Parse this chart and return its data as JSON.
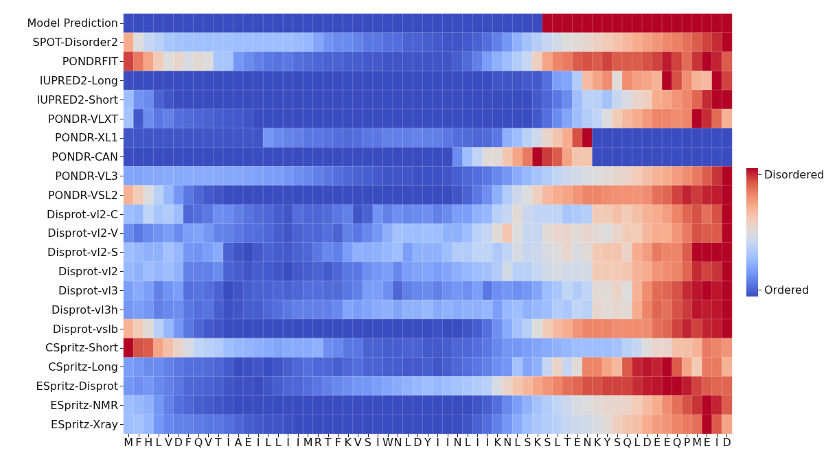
{
  "chart_data": [
    {
      "type": "heatmap",
      "categories": [
        "M",
        "F",
        "H",
        "L",
        "V",
        "D",
        "F",
        "Q",
        "V",
        "T",
        "I",
        "A",
        "E",
        "I",
        "L",
        "L",
        "I",
        "I",
        "M",
        "R",
        "T",
        "F",
        "K",
        "V",
        "S",
        "I",
        "W",
        "N",
        "L",
        "D",
        "Y",
        "I",
        "I",
        "N",
        "L",
        "I",
        "I",
        "K",
        "N",
        "L",
        "S",
        "K",
        "S",
        "L",
        "T",
        "E",
        "N",
        "K",
        "Y",
        "S",
        "Q",
        "L",
        "D",
        "E",
        "E",
        "Q",
        "P",
        "M",
        "E",
        "I",
        "D"
      ],
      "y_categories": [
        "Model Prediction",
        "SPOT-Disorder2",
        "PONDRFIT",
        "IUPRED2-Long",
        "IUPRED2-Short",
        "PONDR-VLXT",
        "PONDR-XL1",
        "PONDR-CAN",
        "PONDR-VL3",
        "PONDR-VSL2",
        "Disprot-vl2-C",
        "Disprot-vl2-V",
        "Disprot-vl2-S",
        "Disprot-vl2",
        "Disprot-vl3",
        "Disprot-vl3h",
        "Disprot-vslb",
        "CSpritz-Short",
        "CSpritz-Long",
        "ESpritz-Disprot",
        "ESpritz-NMR",
        "ESpritz-Xray"
      ],
      "clim": [
        0,
        1
      ],
      "cticks": [
        {
          "value": 0.05,
          "label": "Ordered"
        },
        {
          "value": 0.95,
          "label": "Disordered"
        }
      ],
      "cells": [
        [
          0,
          0,
          0,
          0,
          0,
          0,
          0,
          0,
          0,
          0,
          0,
          0,
          0,
          0,
          0,
          0,
          0,
          0,
          0,
          0,
          0,
          0,
          0,
          0,
          0,
          0,
          0,
          0,
          0,
          0,
          0,
          0,
          0,
          0,
          0,
          0,
          0,
          0,
          0,
          0,
          0,
          0,
          1,
          1,
          1,
          1,
          1,
          1,
          1,
          1,
          1,
          1,
          1,
          1,
          1,
          1,
          1,
          1,
          1,
          1,
          1
        ],
        [
          0.7,
          0.5,
          0.42,
          0.38,
          0.33,
          0.32,
          0.31,
          0.31,
          0.31,
          0.31,
          0.31,
          0.3,
          0.3,
          0.3,
          0.3,
          0.3,
          0.3,
          0.29,
          0.28,
          0.22,
          0.17,
          0.15,
          0.15,
          0.13,
          0.1,
          0.1,
          0.08,
          0.08,
          0.05,
          0.05,
          0.04,
          0.03,
          0.02,
          0.02,
          0.03,
          0.05,
          0.08,
          0.12,
          0.18,
          0.26,
          0.32,
          0.37,
          0.42,
          0.46,
          0.5,
          0.52,
          0.54,
          0.57,
          0.6,
          0.63,
          0.66,
          0.7,
          0.73,
          0.76,
          0.79,
          0.81,
          0.84,
          0.88,
          0.92,
          0.95,
          1.0
        ],
        [
          0.92,
          0.82,
          0.72,
          0.6,
          0.5,
          0.55,
          0.48,
          0.53,
          0.5,
          0.33,
          0.33,
          0.18,
          0.15,
          0.12,
          0.1,
          0.09,
          0.1,
          0.08,
          0.07,
          0.06,
          0.05,
          0.05,
          0.04,
          0.04,
          0.03,
          0.03,
          0.02,
          0.02,
          0.02,
          0.02,
          0.02,
          0.02,
          0.02,
          0.04,
          0.07,
          0.12,
          0.2,
          0.25,
          0.3,
          0.36,
          0.42,
          0.58,
          0.72,
          0.8,
          0.82,
          0.88,
          0.9,
          0.88,
          0.92,
          0.88,
          0.88,
          0.88,
          0.9,
          0.92,
          0.97,
          0.92,
          0.85,
          0.94,
          1.0,
          0.96,
          0.88
        ],
        [
          0,
          0,
          0,
          0,
          0,
          0,
          0,
          0,
          0,
          0,
          0,
          0,
          0,
          0,
          0,
          0,
          0,
          0,
          0,
          0,
          0,
          0,
          0,
          0,
          0,
          0,
          0,
          0,
          0,
          0,
          0,
          0,
          0,
          0,
          0,
          0,
          0,
          0.02,
          0.02,
          0.02,
          0.03,
          0.03,
          0.08,
          0.2,
          0.22,
          0.36,
          0.65,
          0.72,
          0.78,
          0.52,
          0.78,
          0.74,
          0.72,
          0.68,
          1.0,
          0.9,
          0.78,
          0.68,
          0.66,
          1.0,
          0.92
        ],
        [
          0.3,
          0.17,
          0.15,
          0.05,
          0.02,
          0,
          0,
          0,
          0,
          0,
          0,
          0,
          0,
          0,
          0,
          0,
          0,
          0,
          0,
          0,
          0,
          0,
          0,
          0,
          0,
          0,
          0,
          0,
          0,
          0,
          0,
          0,
          0,
          0,
          0,
          0,
          0,
          0,
          0,
          0,
          0,
          0.03,
          0.06,
          0.1,
          0.15,
          0.3,
          0.38,
          0.38,
          0.32,
          0.42,
          0.48,
          0.55,
          0.58,
          0.7,
          0.72,
          0.76,
          0.8,
          0.86,
          0.95,
          1.0,
          1.0
        ],
        [
          0.32,
          0.03,
          0.15,
          0.1,
          0.12,
          0.08,
          0.07,
          0.06,
          0.05,
          0.04,
          0.03,
          0.03,
          0.02,
          0,
          0,
          0,
          0,
          0,
          0,
          0,
          0,
          0,
          0,
          0,
          0,
          0,
          0,
          0,
          0,
          0,
          0,
          0,
          0,
          0,
          0,
          0,
          0,
          0,
          0,
          0,
          0,
          0.03,
          0.08,
          0.15,
          0.22,
          0.3,
          0.36,
          0.4,
          0.5,
          0.6,
          0.66,
          0.7,
          0.75,
          0.8,
          0.8,
          0.78,
          0.8,
          1.0,
          0.95,
          0.85,
          0.68
        ],
        [
          0.02,
          0.02,
          0.02,
          0.02,
          0.02,
          0.02,
          0.02,
          0.02,
          0.02,
          0.02,
          0.02,
          0.02,
          0.02,
          0.02,
          0.18,
          0.15,
          0.13,
          0.12,
          0.1,
          0.1,
          0.09,
          0.08,
          0.07,
          0.08,
          0.1,
          0.1,
          0.12,
          0.12,
          0.12,
          0.13,
          0.12,
          0.12,
          0.1,
          0.08,
          0.07,
          0.06,
          0.07,
          0.1,
          0.25,
          0.3,
          0.38,
          0.45,
          0.55,
          0.62,
          0.7,
          0.9,
          1.0,
          0,
          0,
          0,
          0,
          0,
          0,
          0,
          0,
          0,
          0,
          0,
          0,
          0,
          0
        ],
        [
          0,
          0,
          0,
          0,
          0,
          0,
          0,
          0,
          0,
          0,
          0,
          0,
          0,
          0,
          0,
          0,
          0,
          0,
          0,
          0,
          0,
          0,
          0,
          0,
          0,
          0,
          0,
          0,
          0,
          0,
          0,
          0,
          0,
          0.15,
          0.3,
          0.4,
          0.52,
          0.52,
          0.62,
          0.72,
          0.82,
          1.0,
          0.93,
          0.88,
          0.72,
          0.62,
          0.62,
          0,
          0,
          0,
          0,
          0,
          0,
          0,
          0,
          0,
          0,
          0,
          0,
          0,
          0
        ],
        [
          0.22,
          0.22,
          0.23,
          0.23,
          0.24,
          0.24,
          0.24,
          0.24,
          0.24,
          0.24,
          0.23,
          0.23,
          0.22,
          0.21,
          0.2,
          0.2,
          0.18,
          0.16,
          0.14,
          0.12,
          0.1,
          0.08,
          0.06,
          0.05,
          0.04,
          0.03,
          0.02,
          0.02,
          0.02,
          0.01,
          0.01,
          0.01,
          0.02,
          0.04,
          0.06,
          0.08,
          0.1,
          0.14,
          0.18,
          0.24,
          0.28,
          0.32,
          0.36,
          0.4,
          0.44,
          0.46,
          0.48,
          0.5,
          0.52,
          0.54,
          0.56,
          0.6,
          0.64,
          0.68,
          0.7,
          0.74,
          0.78,
          0.82,
          0.88,
          0.94,
          1.0
        ],
        [
          0.68,
          0.6,
          0.5,
          0.38,
          0.28,
          0.18,
          0.1,
          0.06,
          0.03,
          0.02,
          0,
          0,
          0,
          0,
          0,
          0,
          0,
          0,
          0,
          0,
          0,
          0,
          0,
          0,
          0,
          0,
          0,
          0,
          0,
          0,
          0,
          0,
          0,
          0.02,
          0.05,
          0.1,
          0.16,
          0.25,
          0.36,
          0.44,
          0.5,
          0.58,
          0.66,
          0.7,
          0.72,
          0.76,
          0.8,
          0.8,
          0.78,
          0.77,
          0.77,
          0.76,
          0.78,
          0.84,
          0.86,
          0.92,
          0.96,
          0.93,
          0.96,
          0.97,
          1.0
        ],
        [
          0.3,
          0.28,
          0.4,
          0.33,
          0.36,
          0.3,
          0.06,
          0.08,
          0.1,
          0.16,
          0.15,
          0.12,
          0.09,
          0.07,
          0.06,
          0.04,
          0.02,
          0.08,
          0.06,
          0.06,
          0.07,
          0.1,
          0.12,
          0.02,
          0.05,
          0.17,
          0.12,
          0.16,
          0.14,
          0.15,
          0.16,
          0.12,
          0.15,
          0.2,
          0.2,
          0.26,
          0.28,
          0.38,
          0.42,
          0.52,
          0.43,
          0.4,
          0.4,
          0.4,
          0.33,
          0.35,
          0.37,
          0.6,
          0.6,
          0.64,
          0.6,
          0.64,
          0.68,
          0.7,
          0.74,
          0.8,
          0.86,
          0.9,
          0.84,
          0.9,
          1.0
        ],
        [
          0.15,
          0.1,
          0.14,
          0.17,
          0.2,
          0.15,
          0.2,
          0.22,
          0.18,
          0.13,
          0.12,
          0.1,
          0.08,
          0.08,
          0.06,
          0.04,
          0.02,
          0.05,
          0.06,
          0.06,
          0.08,
          0.05,
          0.12,
          0.1,
          0.14,
          0.18,
          0.25,
          0.32,
          0.3,
          0.3,
          0.31,
          0.3,
          0.26,
          0.26,
          0.3,
          0.38,
          0.42,
          0.52,
          0.62,
          0.5,
          0.42,
          0.42,
          0.52,
          0.55,
          0.55,
          0.52,
          0.55,
          0.52,
          0.5,
          0.55,
          0.6,
          0.6,
          0.66,
          0.7,
          0.7,
          0.76,
          0.82,
          0.9,
          0.88,
          0.88,
          1.0
        ],
        [
          0.3,
          0.28,
          0.26,
          0.26,
          0.32,
          0.28,
          0.18,
          0.17,
          0.2,
          0.24,
          0.05,
          0.02,
          0,
          0.03,
          0.05,
          0.04,
          0.03,
          0.05,
          0.06,
          0.1,
          0.14,
          0.12,
          0.2,
          0.26,
          0.25,
          0.26,
          0.28,
          0.3,
          0.2,
          0.26,
          0.26,
          0.26,
          0.3,
          0.36,
          0.36,
          0.4,
          0.4,
          0.35,
          0.4,
          0.48,
          0.42,
          0.44,
          0.48,
          0.5,
          0.55,
          0.48,
          0.52,
          0.6,
          0.62,
          0.62,
          0.56,
          0.7,
          0.74,
          0.82,
          0.8,
          0.8,
          0.88,
          1.0,
          1.0,
          1.0,
          1.0
        ],
        [
          0.28,
          0.26,
          0.3,
          0.28,
          0.3,
          0.26,
          0.12,
          0.12,
          0.12,
          0.15,
          0.05,
          0.04,
          0.02,
          0.04,
          0.03,
          0.02,
          0,
          0.03,
          0.04,
          0.05,
          0.03,
          0.06,
          0.1,
          0.1,
          0.16,
          0.18,
          0.2,
          0.14,
          0.2,
          0.22,
          0.22,
          0.2,
          0.22,
          0.25,
          0.28,
          0.3,
          0.32,
          0.36,
          0.46,
          0.38,
          0.38,
          0.42,
          0.46,
          0.48,
          0.46,
          0.46,
          0.47,
          0.6,
          0.6,
          0.6,
          0.62,
          0.68,
          0.7,
          0.76,
          0.78,
          0.8,
          0.86,
          0.95,
          0.92,
          0.94,
          1.0
        ],
        [
          0.2,
          0.24,
          0.2,
          0.12,
          0.17,
          0.2,
          0.08,
          0.09,
          0.08,
          0.05,
          0,
          0.02,
          0.04,
          0.05,
          0.05,
          0.06,
          0.05,
          0.06,
          0.08,
          0.08,
          0.07,
          0.07,
          0.1,
          0.12,
          0.2,
          0.2,
          0.16,
          0.06,
          0.12,
          0.14,
          0.15,
          0.12,
          0.16,
          0.18,
          0.16,
          0.2,
          0.1,
          0.16,
          0.18,
          0.16,
          0.18,
          0.22,
          0.3,
          0.33,
          0.4,
          0.36,
          0.4,
          0.52,
          0.52,
          0.56,
          0.5,
          0.68,
          0.78,
          0.85,
          0.86,
          0.9,
          0.95,
          0.98,
          1.0,
          0.98,
          1.0
        ],
        [
          0.18,
          0.2,
          0.18,
          0.12,
          0.14,
          0.16,
          0.1,
          0.08,
          0.09,
          0.04,
          0.01,
          0.02,
          0.04,
          0.04,
          0.06,
          0.08,
          0.1,
          0.12,
          0.12,
          0.12,
          0.12,
          0.14,
          0.22,
          0.2,
          0.22,
          0.24,
          0.25,
          0.22,
          0.26,
          0.26,
          0.28,
          0.24,
          0.26,
          0.24,
          0.26,
          0.26,
          0.28,
          0.2,
          0.28,
          0.3,
          0.26,
          0.28,
          0.3,
          0.36,
          0.34,
          0.4,
          0.38,
          0.54,
          0.52,
          0.54,
          0.52,
          0.7,
          0.8,
          0.86,
          0.84,
          0.9,
          0.93,
          0.98,
          0.97,
          0.98,
          1.0
        ],
        [
          0.68,
          0.6,
          0.52,
          0.38,
          0.28,
          0.18,
          0.1,
          0.06,
          0.03,
          0.02,
          0,
          0,
          0,
          0,
          0,
          0,
          0,
          0,
          0,
          0,
          0,
          0,
          0,
          0,
          0,
          0,
          0,
          0,
          0,
          0,
          0,
          0.01,
          0,
          0,
          0.02,
          0.04,
          0.08,
          0.16,
          0.24,
          0.32,
          0.38,
          0.5,
          0.6,
          0.66,
          0.7,
          0.76,
          0.8,
          0.8,
          0.8,
          0.78,
          0.78,
          0.78,
          0.78,
          0.84,
          0.86,
          0.92,
          0.96,
          0.92,
          0.96,
          0.97,
          1.0
        ],
        [
          1.0,
          0.9,
          0.88,
          0.72,
          0.64,
          0.56,
          0.48,
          0.4,
          0.38,
          0.36,
          0.3,
          0.28,
          0.27,
          0.25,
          0.24,
          0.22,
          0.24,
          0.24,
          0.24,
          0.26,
          0.16,
          0.14,
          0.1,
          0.1,
          0.05,
          0.05,
          0.04,
          0.04,
          0.05,
          0.05,
          0.03,
          0.03,
          0.04,
          0.06,
          0.06,
          0.08,
          0.1,
          0.14,
          0.18,
          0.18,
          0.2,
          0.22,
          0.24,
          0.26,
          0.28,
          0.3,
          0.3,
          0.3,
          0.3,
          0.32,
          0.38,
          0.42,
          0.5,
          0.55,
          0.55,
          0.64,
          0.64,
          0.68,
          0.82,
          0.8,
          0.76
        ],
        [
          0.2,
          0.18,
          0.15,
          0.15,
          0.12,
          0.1,
          0.08,
          0.08,
          0.07,
          0.06,
          0.03,
          0,
          0.01,
          0.02,
          0,
          0.02,
          0.04,
          0.06,
          0.08,
          0.06,
          0.06,
          0.04,
          0.06,
          0.08,
          0.05,
          0.05,
          0.04,
          0.04,
          0.03,
          0.03,
          0.04,
          0.02,
          0.04,
          0.06,
          0.08,
          0.1,
          0.12,
          0.16,
          0.18,
          0.32,
          0.22,
          0.26,
          0.42,
          0.56,
          0.42,
          0.52,
          0.8,
          0.8,
          0.72,
          0.66,
          0.88,
          0.96,
          0.98,
          0.96,
          1.0,
          0.88,
          0.72,
          0.6,
          0.82,
          0.82,
          0.68
        ],
        [
          0.18,
          0.16,
          0.18,
          0.14,
          0.12,
          0.1,
          0.06,
          0.06,
          0.05,
          0.04,
          0.02,
          0.01,
          0.01,
          0,
          0.02,
          0.04,
          0.06,
          0.06,
          0.08,
          0.1,
          0.12,
          0.14,
          0.16,
          0.18,
          0.18,
          0.2,
          0.22,
          0.24,
          0.26,
          0.28,
          0.3,
          0.28,
          0.3,
          0.32,
          0.34,
          0.36,
          0.38,
          0.48,
          0.56,
          0.62,
          0.66,
          0.72,
          0.76,
          0.8,
          0.84,
          0.86,
          0.9,
          0.9,
          0.92,
          0.92,
          0.92,
          0.95,
          0.97,
          0.98,
          1.0,
          1.0,
          0.97,
          0.92,
          0.88,
          0.86,
          0.86
        ],
        [
          0.3,
          0.28,
          0.26,
          0.18,
          0.12,
          0.08,
          0.06,
          0.04,
          0.03,
          0.02,
          0.01,
          0,
          0,
          0,
          0,
          0,
          0,
          0,
          0,
          0,
          0,
          0,
          0,
          0,
          0,
          0,
          0,
          0,
          0,
          0,
          0,
          0,
          0,
          0,
          0,
          0.02,
          0.04,
          0.08,
          0.14,
          0.2,
          0.26,
          0.32,
          0.36,
          0.4,
          0.44,
          0.48,
          0.5,
          0.52,
          0.54,
          0.55,
          0.56,
          0.6,
          0.65,
          0.7,
          0.78,
          0.84,
          0.9,
          0.94,
          1.0,
          0.96,
          0.88
        ],
        [
          0.3,
          0.32,
          0.28,
          0.18,
          0.14,
          0.12,
          0.12,
          0.11,
          0.1,
          0.1,
          0.08,
          0.06,
          0.04,
          0.03,
          0.02,
          0.02,
          0.01,
          0,
          0,
          0,
          0,
          0,
          0,
          0,
          0,
          0,
          0,
          0,
          0,
          0,
          0,
          0,
          0,
          0,
          0.02,
          0.05,
          0.08,
          0.12,
          0.18,
          0.24,
          0.3,
          0.34,
          0.36,
          0.38,
          0.42,
          0.44,
          0.46,
          0.48,
          0.52,
          0.58,
          0.62,
          0.64,
          0.7,
          0.74,
          0.76,
          0.8,
          0.82,
          0.84,
          1.0,
          0.88,
          0.72
        ]
      ]
    }
  ]
}
